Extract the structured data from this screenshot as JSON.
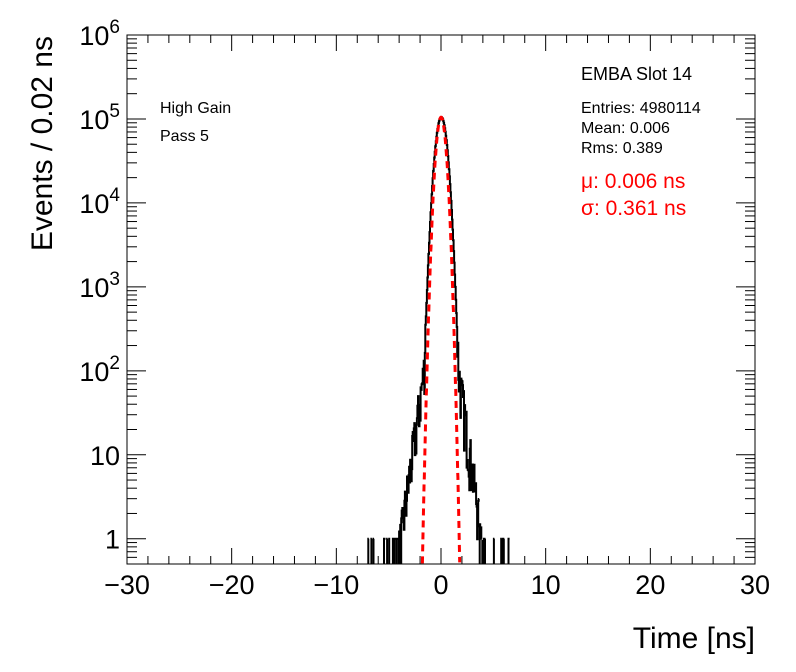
{
  "chart_data": {
    "type": "line",
    "xlabel": "Time [ns]",
    "ylabel": "Events / 0.02 ns",
    "xlim": [
      -30,
      30
    ],
    "ylim": [
      0.5,
      1000000
    ],
    "yscale": "log",
    "x_ticks": [
      -30,
      -20,
      -10,
      0,
      10,
      20,
      30
    ],
    "x_tick_labels": [
      "−30",
      "−20",
      "−10",
      "0",
      "10",
      "20",
      "30"
    ],
    "y_ticks": [
      {
        "value": 1,
        "base": "1",
        "exp": ""
      },
      {
        "value": 10,
        "base": "10",
        "exp": ""
      },
      {
        "value": 100,
        "base": "10",
        "exp": "2"
      },
      {
        "value": 1000,
        "base": "10",
        "exp": "3"
      },
      {
        "value": 10000,
        "base": "10",
        "exp": "4"
      },
      {
        "value": 100000,
        "base": "10",
        "exp": "5"
      },
      {
        "value": 1000000,
        "base": "10",
        "exp": "6"
      }
    ],
    "grid": false,
    "series": [
      {
        "name": "",
        "color": "#000000",
        "style": "histogram",
        "peak": 105000,
        "mean": 0.006,
        "rms": 0.389
      },
      {
        "name": "",
        "color": "#ff0000",
        "style": "dashed",
        "mu": 0.006,
        "sigma": 0.361,
        "peak": 105000
      }
    ],
    "annotations": {
      "label_left_1": "High Gain",
      "label_left_2": "Pass 5",
      "title_right": "EMBA Slot 14",
      "entries": "Entries: 4980114",
      "mean": "Mean: 0.006",
      "rms": "Rms: 0.389",
      "mu": "μ: 0.006 ns",
      "sigma": "σ: 0.361 ns"
    }
  }
}
